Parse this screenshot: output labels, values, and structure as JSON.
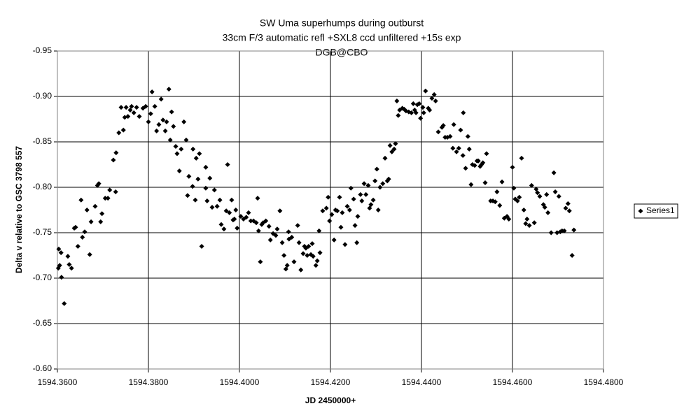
{
  "chart_data": {
    "type": "scatter",
    "title": [
      "SW Uma superhumps during outburst",
      "33cm F/3 automatic refl +SXL8 ccd unfiltered +15s exp",
      "DGB@CBO"
    ],
    "x_label": "JD 2450000+",
    "y_label": "Delta v relative to GSC 3798 557",
    "xlim": [
      1594.36,
      1594.48
    ],
    "ylim": [
      -0.6,
      -0.95
    ],
    "xticks": [
      {
        "value": 1594.36,
        "label": "1594.3600"
      },
      {
        "value": 1594.38,
        "label": "1594.3800"
      },
      {
        "value": 1594.4,
        "label": "1594.4000"
      },
      {
        "value": 1594.42,
        "label": "1594.4200"
      },
      {
        "value": 1594.44,
        "label": "1594.4400"
      },
      {
        "value": 1594.46,
        "label": "1594.4600"
      },
      {
        "value": 1594.48,
        "label": "1594.4800"
      }
    ],
    "yticks": [
      -0.95,
      {
        "value": -0.9,
        "label": "-0.90"
      },
      -0.85,
      {
        "value": -0.8,
        "label": "-0.80"
      },
      -0.75,
      {
        "value": -0.7,
        "label": "-0.70"
      },
      -0.65,
      {
        "value": -0.6,
        "label": "-0.60"
      }
    ],
    "grid": true,
    "legend_position": "right",
    "x": [
      1594.3602,
      1594.3605,
      1594.3603,
      1594.3608,
      1594.3609,
      1594.3615,
      1594.3623,
      1594.3626,
      1594.3631,
      1594.3637,
      1594.364,
      1594.3645,
      1594.3652,
      1594.3655,
      1594.366,
      1594.3665,
      1594.3671,
      1594.3674,
      1594.3683,
      1594.3688,
      1594.3691,
      1594.3695,
      1594.3698,
      1594.3705,
      1594.3711,
      1594.3715,
      1594.3723,
      1594.3728,
      1594.3729,
      1594.3735,
      1594.374,
      1594.3745,
      1594.3748,
      1594.3751,
      1594.3755,
      1594.376,
      1594.3763,
      1594.3768,
      1594.3774,
      1594.378,
      1594.3788,
      1594.3794,
      1594.38,
      1594.3805,
      1594.3808,
      1594.3814,
      1594.3818,
      1594.3823,
      1594.3828,
      1594.3832,
      1594.3837,
      1594.384,
      1594.3845,
      1594.3848,
      1594.3851,
      1594.3855,
      1594.386,
      1594.3863,
      1594.3868,
      1594.3872,
      1594.3878,
      1594.3883,
      1594.3886,
      1594.3889,
      1594.3897,
      1594.3898,
      1594.3903,
      1594.3905,
      1594.3909,
      1594.3912,
      1594.3917,
      1594.3926,
      1594.3926,
      1594.3929,
      1594.3935,
      1594.394,
      1594.3945,
      1594.3951,
      1594.3957,
      1594.396,
      1594.3966,
      1594.3971,
      1594.3974,
      1594.3978,
      1594.3983,
      1594.3986,
      1594.3989,
      1594.3992,
      1594.3995,
      1594.4003,
      1594.4009,
      1594.4015,
      1594.402,
      1594.4025,
      1594.4031,
      1594.4037,
      1594.404,
      1594.4042,
      1594.4046,
      1594.4049,
      1594.4052,
      1594.4058,
      1594.4065,
      1594.4068,
      1594.4074,
      1594.408,
      1594.4083,
      1594.4089,
      1594.4094,
      1594.4098,
      1594.4102,
      1594.4105,
      1594.4108,
      1594.4109,
      1594.4115,
      1594.412,
      1594.4128,
      1594.4131,
      1594.4135,
      1594.414,
      1594.4143,
      1594.4146,
      1594.4149,
      1594.4152,
      1594.4157,
      1594.416,
      1594.4162,
      1594.4168,
      1594.4171,
      1594.4175,
      1594.4177,
      1594.4183,
      1594.4191,
      1594.4195,
      1594.4198,
      1594.4203,
      1594.4208,
      1594.4211,
      1594.4215,
      1594.422,
      1594.4223,
      1594.4226,
      1594.4232,
      1594.4237,
      1594.4242,
      1594.4245,
      1594.4251,
      1594.4254,
      1594.4258,
      1594.426,
      1594.4266,
      1594.4269,
      1594.4274,
      1594.4278,
      1594.4283,
      1594.4286,
      1594.4289,
      1594.4294,
      1594.4298,
      1594.4302,
      1594.4305,
      1594.4309,
      1594.4315,
      1594.432,
      1594.4325,
      1594.4328,
      1594.4331,
      1594.4335,
      1594.434,
      1594.4343,
      1594.4346,
      1594.4349,
      1594.4352,
      1594.4358,
      1594.4362,
      1594.4366,
      1594.4372,
      1594.4378,
      1594.4382,
      1594.4385,
      1594.4388,
      1594.4391,
      1594.4395,
      1594.4398,
      1594.4403,
      1594.4405,
      1594.4409,
      1594.4415,
      1594.4418,
      1594.4423,
      1594.4428,
      1594.4431,
      1594.4437,
      1594.4445,
      1594.4448,
      1594.4452,
      1594.4457,
      1594.4463,
      1594.4469,
      1594.4471,
      1594.4477,
      1594.4482,
      1594.4486,
      1594.4491,
      1594.4492,
      1594.4497,
      1594.4502,
      1594.4505,
      1594.4509,
      1594.4512,
      1594.4517,
      1594.4522,
      1594.4525,
      1594.4529,
      1594.4532,
      1594.4535,
      1594.454,
      1594.4543,
      1594.4552,
      1594.4557,
      1594.4562,
      1594.4566,
      1594.4572,
      1594.4577,
      1594.4582,
      1594.4588,
      1594.4592,
      1594.46,
      1594.4603,
      1594.4606,
      1594.4611,
      1594.4615,
      1594.462,
      1594.4625,
      1594.4629,
      1594.4632,
      1594.4637,
      1594.4642,
      1594.4648,
      1594.4652,
      1594.4655,
      1594.466,
      1594.4668,
      1594.4671,
      1594.4675,
      1594.4678,
      1594.4685,
      1594.4691,
      1594.4694,
      1594.4698,
      1594.4702,
      1594.4705,
      1594.4709,
      1594.4714,
      1594.4717,
      1594.4722,
      1594.4725,
      1594.4731,
      1594.4735
    ],
    "series": [
      {
        "name": "Series1",
        "color": "#000000",
        "values": [
          -0.711,
          -0.714,
          -0.732,
          -0.728,
          -0.701,
          -0.672,
          -0.724,
          -0.715,
          -0.711,
          -0.755,
          -0.756,
          -0.735,
          -0.786,
          -0.745,
          -0.751,
          -0.775,
          -0.726,
          -0.762,
          -0.779,
          -0.802,
          -0.804,
          -0.762,
          -0.771,
          -0.788,
          -0.788,
          -0.797,
          -0.83,
          -0.795,
          -0.838,
          -0.86,
          -0.888,
          -0.863,
          -0.877,
          -0.888,
          -0.878,
          -0.885,
          -0.889,
          -0.882,
          -0.888,
          -0.878,
          -0.887,
          -0.889,
          -0.872,
          -0.881,
          -0.905,
          -0.889,
          -0.862,
          -0.869,
          -0.897,
          -0.874,
          -0.862,
          -0.872,
          -0.908,
          -0.852,
          -0.883,
          -0.867,
          -0.845,
          -0.837,
          -0.818,
          -0.842,
          -0.872,
          -0.852,
          -0.791,
          -0.812,
          -0.801,
          -0.842,
          -0.786,
          -0.832,
          -0.809,
          -0.837,
          -0.735,
          -0.822,
          -0.799,
          -0.785,
          -0.81,
          -0.778,
          -0.797,
          -0.779,
          -0.786,
          -0.759,
          -0.754,
          -0.774,
          -0.825,
          -0.772,
          -0.786,
          -0.764,
          -0.765,
          -0.775,
          -0.755,
          -0.768,
          -0.765,
          -0.767,
          -0.772,
          -0.763,
          -0.763,
          -0.761,
          -0.788,
          -0.752,
          -0.718,
          -0.759,
          -0.761,
          -0.763,
          -0.757,
          -0.742,
          -0.749,
          -0.747,
          -0.754,
          -0.774,
          -0.739,
          -0.725,
          -0.71,
          -0.714,
          -0.751,
          -0.743,
          -0.745,
          -0.718,
          -0.758,
          -0.739,
          -0.709,
          -0.727,
          -0.735,
          -0.733,
          -0.725,
          -0.735,
          -0.726,
          -0.738,
          -0.724,
          -0.714,
          -0.719,
          -0.752,
          -0.728,
          -0.774,
          -0.777,
          -0.789,
          -0.763,
          -0.77,
          -0.742,
          -0.775,
          -0.774,
          -0.789,
          -0.756,
          -0.772,
          -0.737,
          -0.779,
          -0.775,
          -0.799,
          -0.787,
          -0.758,
          -0.739,
          -0.768,
          -0.792,
          -0.785,
          -0.804,
          -0.792,
          -0.802,
          -0.777,
          -0.781,
          -0.786,
          -0.807,
          -0.82,
          -0.775,
          -0.8,
          -0.804,
          -0.832,
          -0.807,
          -0.809,
          -0.846,
          -0.839,
          -0.842,
          -0.848,
          -0.895,
          -0.879,
          -0.885,
          -0.887,
          -0.886,
          -0.884,
          -0.883,
          -0.882,
          -0.892,
          -0.885,
          -0.882,
          -0.891,
          -0.892,
          -0.876,
          -0.888,
          -0.882,
          -0.906,
          -0.887,
          -0.885,
          -0.898,
          -0.902,
          -0.895,
          -0.861,
          -0.866,
          -0.868,
          -0.855,
          -0.855,
          -0.856,
          -0.843,
          -0.869,
          -0.839,
          -0.843,
          -0.863,
          -0.835,
          -0.882,
          -0.821,
          -0.856,
          -0.842,
          -0.803,
          -0.825,
          -0.824,
          -0.829,
          -0.829,
          -0.823,
          -0.825,
          -0.827,
          -0.805,
          -0.837,
          -0.785,
          -0.785,
          -0.784,
          -0.795,
          -0.78,
          -0.806,
          -0.766,
          -0.768,
          -0.765,
          -0.822,
          -0.799,
          -0.787,
          -0.785,
          -0.789,
          -0.832,
          -0.775,
          -0.76,
          -0.765,
          -0.758,
          -0.802,
          -0.761,
          -0.798,
          -0.794,
          -0.79,
          -0.781,
          -0.778,
          -0.792,
          -0.772,
          -0.75,
          -0.816,
          -0.795,
          -0.75,
          -0.79,
          -0.751,
          -0.752,
          -0.752,
          -0.777,
          -0.782,
          -0.774,
          -0.725,
          -0.753
        ]
      }
    ]
  }
}
